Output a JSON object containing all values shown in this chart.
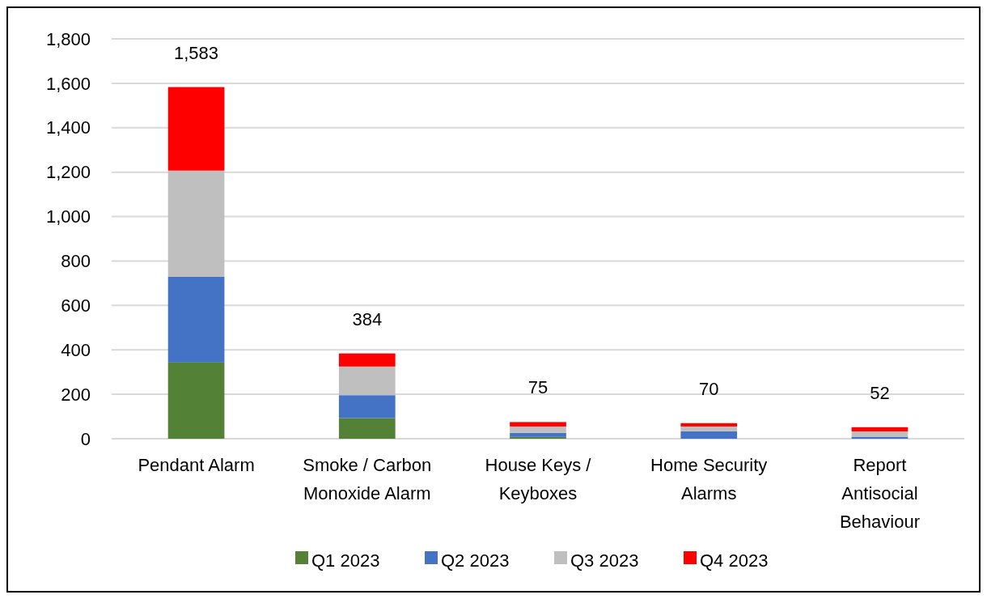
{
  "chart_data": {
    "type": "bar",
    "stacked": true,
    "categories": [
      "Pendant Alarm",
      "Smoke / Carbon Monoxide Alarm",
      "House Keys / Keyboxes",
      "Home Security Alarms",
      "Report Antisocial Behaviour"
    ],
    "series": [
      {
        "name": "Q1 2023",
        "color": "#538135",
        "values": [
          343,
          93,
          8,
          0,
          0
        ]
      },
      {
        "name": "Q2 2023",
        "color": "#4472c4",
        "values": [
          386,
          103,
          18,
          33,
          9
        ]
      },
      {
        "name": "Q3 2023",
        "color": "#bfbfbf",
        "values": [
          478,
          129,
          29,
          22,
          24
        ]
      },
      {
        "name": "Q4 2023",
        "color": "#ff0000",
        "values": [
          376,
          59,
          20,
          15,
          19
        ]
      }
    ],
    "totals": [
      "1,583",
      "384",
      "75",
      "70",
      "52"
    ],
    "ylim": [
      0,
      1800
    ],
    "yticks": [
      0,
      {
        "value": 200,
        "label": "200"
      },
      {
        "value": 400,
        "label": "400"
      },
      {
        "value": 600,
        "label": "600"
      },
      {
        "value": 800,
        "label": "800"
      },
      {
        "value": 1000,
        "label": "1,000"
      },
      {
        "value": 1200,
        "label": "1,200"
      },
      {
        "value": 1400,
        "label": "1,400"
      },
      {
        "value": 1600,
        "label": "1,600"
      },
      {
        "value": 1800,
        "label": "1,800"
      }
    ],
    "grid": "y",
    "legend": "bottom"
  }
}
